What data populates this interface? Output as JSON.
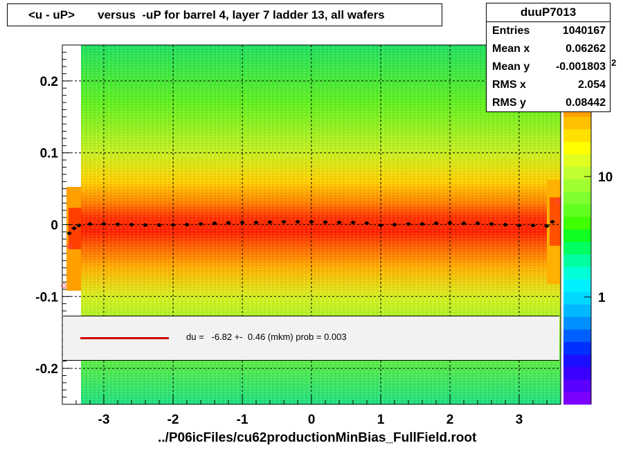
{
  "title": "<u - uP>       versus  -uP for barrel 4, layer 7 ladder 13, all wafers",
  "footer": "../P06icFiles/cu62productionMinBias_FullField.root",
  "stats": {
    "name": "duuP7013",
    "rows": [
      {
        "label": "Entries",
        "value": "1040167"
      },
      {
        "label": "Mean x",
        "value": "0.06262"
      },
      {
        "label": "Mean y",
        "value": "-0.001803"
      },
      {
        "label": "RMS x",
        "value": "2.054"
      },
      {
        "label": "RMS y",
        "value": "0.08442"
      }
    ]
  },
  "legend": {
    "text": "du =   -6.82 +-  0.46 (mkm) prob = 0.003",
    "line_color": "#d00000"
  },
  "colorbar": {
    "labels": [
      "10",
      "1"
    ],
    "partial_label": "2",
    "colors": [
      "#7a00ff",
      "#5a00ff",
      "#3a00ff",
      "#1a10ff",
      "#0030ff",
      "#0060ff",
      "#0090ff",
      "#00b8ff",
      "#00d8ff",
      "#00f0ff",
      "#00ffd8",
      "#00ffa0",
      "#00ff60",
      "#10ff20",
      "#40ff00",
      "#60ff20",
      "#80ff30",
      "#a0ff30",
      "#c0ff30",
      "#e0ff20",
      "#ffff00",
      "#ffe000",
      "#ffc000",
      "#ffa000"
    ]
  },
  "chart_data": {
    "type": "heatmap",
    "title": "<u - uP>       versus  -uP for barrel 4, layer 7 ladder 13, all wafers",
    "xlabel": "../P06icFiles/cu62productionMinBias_FullField.root",
    "ylabel": "",
    "xlim": [
      -3.6,
      3.6
    ],
    "ylim": [
      -0.25,
      0.25
    ],
    "xticks": [
      -3,
      -2,
      -1,
      0,
      1,
      2,
      3
    ],
    "yticks": [
      0.2,
      0.1,
      0,
      -0.1,
      -0.2
    ],
    "ytick_labels": [
      "0.2",
      "0.1",
      "0",
      "-0.1",
      "-0.2"
    ],
    "grid": true,
    "log_z": true,
    "profile_series": {
      "name": "profile",
      "x": [
        -3.5,
        -3.43,
        -3.36,
        -3.2,
        -3.0,
        -2.8,
        -2.6,
        -2.4,
        -2.2,
        -2.0,
        -1.8,
        -1.6,
        -1.4,
        -1.2,
        -1.0,
        -0.8,
        -0.6,
        -0.4,
        -0.2,
        0.0,
        0.2,
        0.4,
        0.6,
        0.8,
        1.0,
        1.2,
        1.4,
        1.6,
        1.8,
        2.0,
        2.2,
        2.4,
        2.6,
        2.8,
        3.0,
        3.2,
        3.4,
        3.48
      ],
      "y": [
        -0.012,
        -0.005,
        -0.001,
        0.001,
        0.001,
        0.0005,
        0.0,
        -0.0005,
        -0.0005,
        -0.0003,
        0.0,
        0.001,
        0.002,
        0.0025,
        0.003,
        0.003,
        0.0035,
        0.004,
        0.004,
        0.004,
        0.0035,
        0.003,
        0.003,
        0.002,
        -0.001,
        0.0,
        0.001,
        0.001,
        0.002,
        0.0025,
        0.002,
        0.002,
        0.001,
        0.0,
        -0.001,
        -0.001,
        -0.002,
        0.004
      ]
    },
    "outlier_points": {
      "x": [
        -3.5,
        -3.58,
        3.56
      ],
      "y": [
        -0.03,
        -0.085,
        0.032
      ]
    }
  }
}
